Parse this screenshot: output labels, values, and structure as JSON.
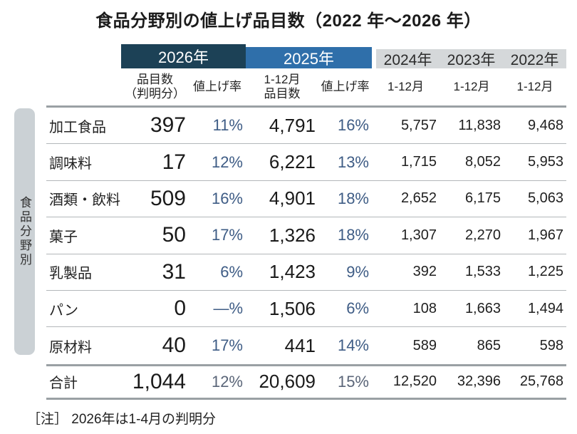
{
  "title": "食品分野別の値上げ品目数（2022 年～2026 年）",
  "side_label": "食品分野別",
  "note": "［注］ 2026年は1-4月の判明分",
  "colors": {
    "year2026_bg": "#1c4156",
    "year2025_bg": "#2f6faa",
    "prior_years_bg": "#d5d8da",
    "percent_text": "#3e5c85",
    "number_text": "#1f1f1f",
    "rule_thick": "#9aa0a4",
    "rule_thin": "#b3b7ba",
    "side_rail_bg": "#cbd1d5"
  },
  "header": {
    "groups": [
      {
        "label": "2026年"
      },
      {
        "label": "2025年"
      },
      {
        "label": "2024年"
      },
      {
        "label": "2023年"
      },
      {
        "label": "2022年"
      }
    ],
    "subheaders": {
      "items_2026_line1": "品目数",
      "items_2026_line2": "（判明分）",
      "rate_2026": "値上げ率",
      "items_2025_line1": "1-12月",
      "items_2025_line2": "品目数",
      "rate_2025": "値上げ率",
      "months_2024": "1-12月",
      "months_2023": "1-12月",
      "months_2022": "1-12月"
    }
  },
  "table": {
    "rows": [
      {
        "label": "加工食品",
        "values": [
          "397",
          "11%",
          "4,791",
          "16%",
          "5,757",
          "11,838",
          "9,468"
        ]
      },
      {
        "label": "調味料",
        "values": [
          "17",
          "12%",
          "6,221",
          "13%",
          "1,715",
          "8,052",
          "5,953"
        ]
      },
      {
        "label": "酒類・飲料",
        "values": [
          "509",
          "16%",
          "4,901",
          "18%",
          "2,652",
          "6,175",
          "5,063"
        ]
      },
      {
        "label": "菓子",
        "values": [
          "50",
          "17%",
          "1,326",
          "18%",
          "1,307",
          "2,270",
          "1,967"
        ]
      },
      {
        "label": "乳製品",
        "values": [
          "31",
          "6%",
          "1,423",
          "9%",
          "392",
          "1,533",
          "1,225"
        ]
      },
      {
        "label": "パン",
        "values": [
          "0",
          "—%",
          "1,506",
          "6%",
          "108",
          "1,663",
          "1,494"
        ]
      },
      {
        "label": "原材料",
        "values": [
          "40",
          "17%",
          "441",
          "14%",
          "589",
          "865",
          "598"
        ]
      }
    ],
    "total": {
      "label": "合計",
      "values": [
        "1,044",
        "12%",
        "20,609",
        "15%",
        "12,520",
        "32,396",
        "25,768"
      ]
    }
  },
  "chart_data": {
    "type": "table",
    "title": "食品分野別の値上げ品目数（2022年～2026年）",
    "row_axis_label": "食品分野別",
    "row_categories": [
      "加工食品",
      "調味料",
      "酒類・飲料",
      "菓子",
      "乳製品",
      "パン",
      "原材料",
      "合計"
    ],
    "columns": [
      "2026年 品目数（判明分）",
      "2026年 値上げ率",
      "2025年 1-12月品目数",
      "2025年 値上げ率",
      "2024年 1-12月",
      "2023年 1-12月",
      "2022年 1-12月"
    ],
    "rows": [
      [
        397,
        "11%",
        4791,
        "16%",
        5757,
        11838,
        9468
      ],
      [
        17,
        "12%",
        6221,
        "13%",
        1715,
        8052,
        5953
      ],
      [
        509,
        "16%",
        4901,
        "18%",
        2652,
        6175,
        5063
      ],
      [
        50,
        "17%",
        1326,
        "18%",
        1307,
        2270,
        1967
      ],
      [
        31,
        "6%",
        1423,
        "9%",
        392,
        1533,
        1225
      ],
      [
        0,
        "—%",
        1506,
        "6%",
        108,
        1663,
        1494
      ],
      [
        40,
        "17%",
        441,
        "14%",
        589,
        865,
        598
      ],
      [
        1044,
        "12%",
        20609,
        "15%",
        12520,
        32396,
        25768
      ]
    ],
    "note": "2026年は1-4月の判明分"
  }
}
